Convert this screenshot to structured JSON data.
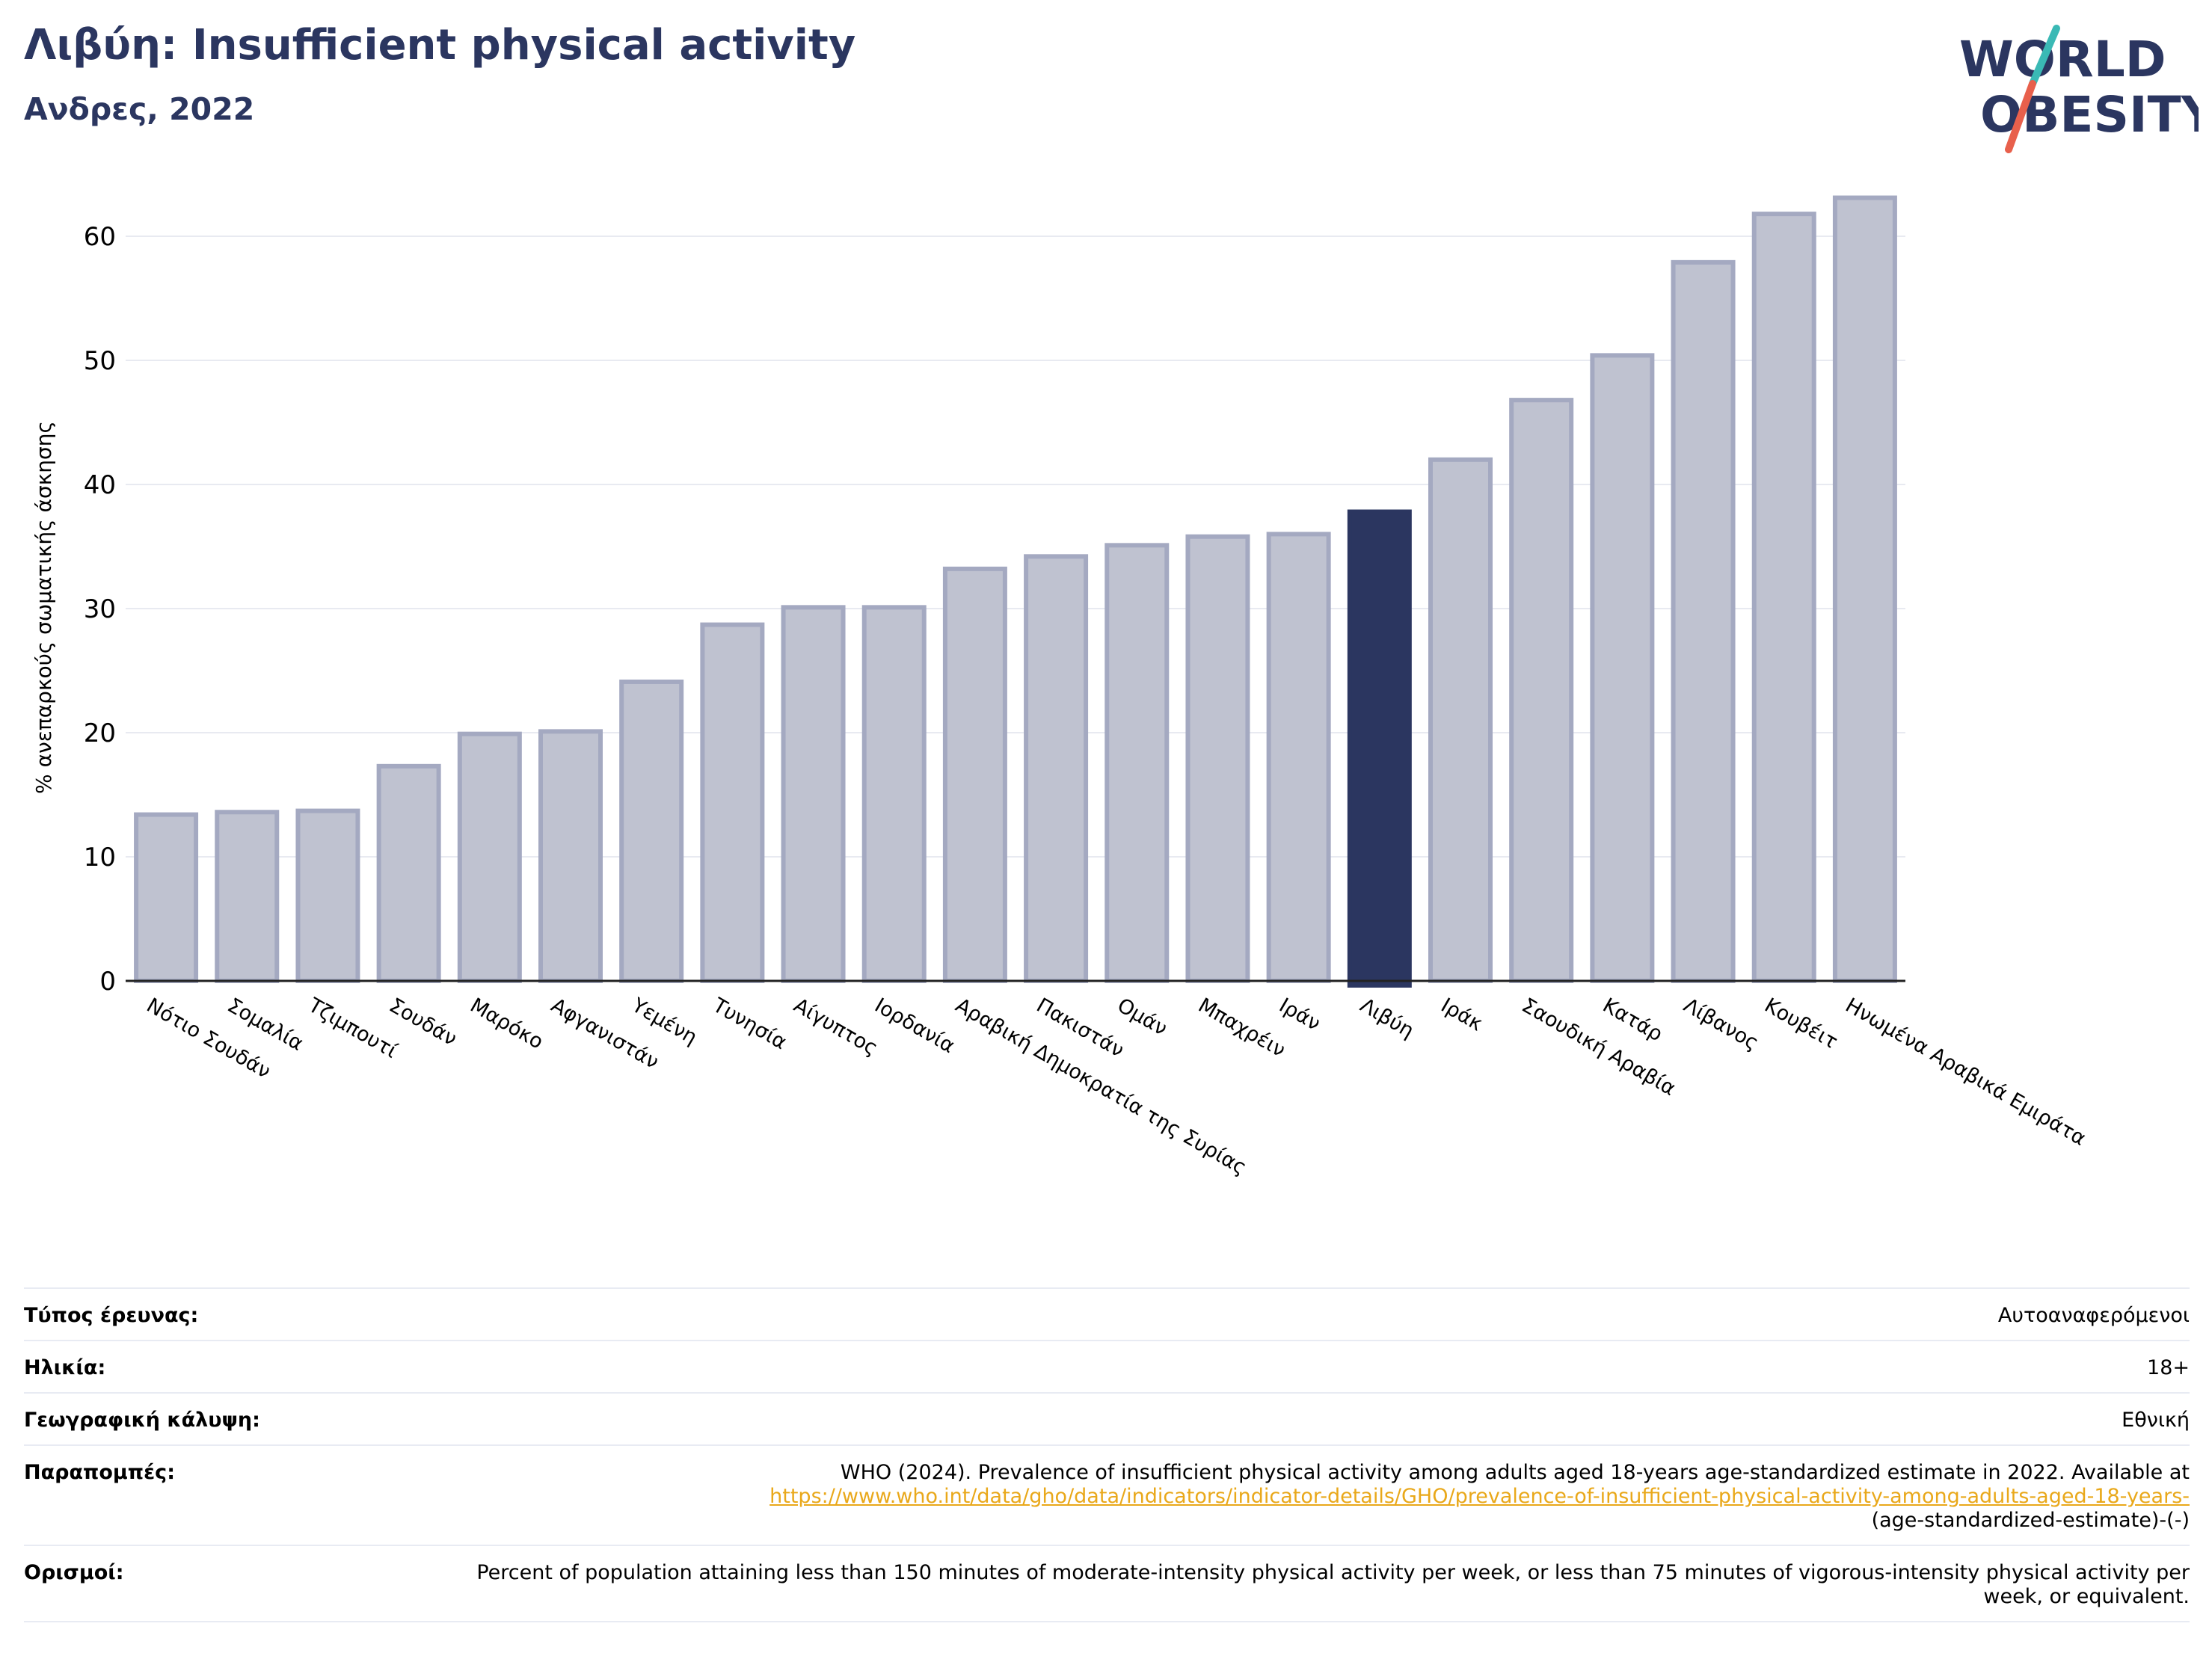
{
  "header": {
    "title": "Λιβύη: Insufficient physical activity",
    "subtitle": "Ανδρες, 2022"
  },
  "logo": {
    "line1": "WORLD",
    "line2": "OBESITY"
  },
  "colors": {
    "highlight": "#2b3660",
    "bar_fill": "#bfc2d0",
    "bar_stroke": "#a4a9c1",
    "title": "#2b3660",
    "logo_teal": "#3ab9b5",
    "logo_red": "#e8604c"
  },
  "chart_data": {
    "type": "bar",
    "ylabel": "% ανεπαρκούς σωματικής άσκησης",
    "xlabel": "",
    "ylim": [
      0,
      65
    ],
    "yticks": [
      0,
      10,
      20,
      30,
      40,
      50,
      60
    ],
    "grid": true,
    "highlight_category": "Λιβύη",
    "categories": [
      "Νότιο Σουδάν",
      "Σομαλία",
      "Τζιμπουτί",
      "Σουδάν",
      "Μαρόκο",
      "Αφγανιστάν",
      "Υεμένη",
      "Τυνησία",
      "Αίγυπτος",
      "Ιορδανία",
      "Αραβική Δημοκρατία της Συρίας",
      "Πακιστάν",
      "Ομάν",
      "Μπαχρέιν",
      "Ιράν",
      "Λιβύη",
      "Ιράκ",
      "Σαουδική Αραβία",
      "Κατάρ",
      "Λίβανος",
      "Κουβέιτ",
      "Ηνωμένα Αραβικά Εμιράτα"
    ],
    "values": [
      13.4,
      13.6,
      13.7,
      17.3,
      19.9,
      20.1,
      24.1,
      28.7,
      30.1,
      30.1,
      33.2,
      34.2,
      35.1,
      35.8,
      36.0,
      37.8,
      42.0,
      46.8,
      50.4,
      57.9,
      61.8,
      63.1
    ]
  },
  "meta": {
    "rows": [
      {
        "label": "Τύπος έρευνας:",
        "value": "Αυτοαναφερόμενοι"
      },
      {
        "label": "Ηλικία:",
        "value": "18+"
      },
      {
        "label": "Γεωγραφική κάλυψη:",
        "value": "Εθνική"
      },
      {
        "label": "Παραπομπές:",
        "value": "WHO (2024). Prevalence of insufficient physical activity among adults aged 18-years age-standardized estimate in 2022. Available at",
        "link": "https://www.who.int/data/gho/data/indicators/indicator-details/GHO/prevalence-of-insufficient-physical-activity-among-adults-aged-18-years-",
        "value_after": "(age-standardized-estimate)-(-)"
      },
      {
        "label": "Ορισμοί:",
        "value": "Percent of population attaining less than 150 minutes of moderate-intensity physical activity per week, or less than 75 minutes of vigorous-intensity physical activity per week, or equivalent."
      }
    ]
  }
}
